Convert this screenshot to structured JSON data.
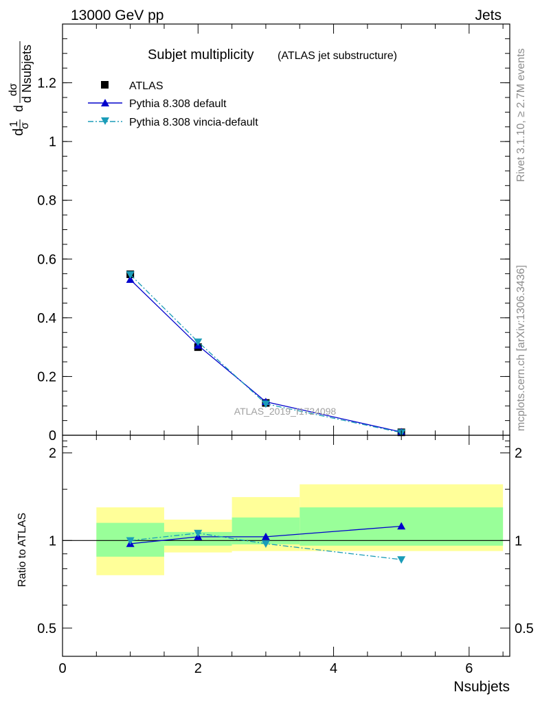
{
  "header": {
    "left": "13000 GeV pp",
    "right": "Jets"
  },
  "plot_title": {
    "main": "Subjet multiplicity",
    "sub": "(ATLAS jet substructure)"
  },
  "side_labels": {
    "rivet": "Rivet 3.1.10, ≥ 2.7M events",
    "mcplots": "mcplots.cern.ch [arXiv:1306.3436]"
  },
  "watermark": "ATLAS_2019_I1724098",
  "ylabel": {
    "frac_num": "1",
    "frac_den": "σ",
    "d_num": "dσ",
    "d_den": "d Nsubjets",
    "prefix": "d"
  },
  "colors": {
    "atlas": "#000000",
    "pythia_default": "#0000cc",
    "pythia_vincia": "#1a9cb8",
    "band_inner": "#99ff99",
    "band_outer": "#ffff99"
  },
  "chart_data": [
    {
      "type": "line",
      "panel": "main",
      "xlim": [
        0,
        6.6
      ],
      "ylim": [
        0,
        1.4
      ],
      "yticks": [
        0,
        0.2,
        0.4,
        0.6,
        0.8,
        1,
        1.2
      ],
      "ytick_labels": [
        "0",
        "0.2",
        "0.4",
        "0.6",
        "0.8",
        "1",
        "1.2"
      ],
      "legend_placement": "top-left",
      "series": [
        {
          "name": "ATLAS",
          "marker": "square",
          "x": [
            1,
            2,
            3,
            5
          ],
          "y": [
            0.548,
            0.3,
            0.11,
            0.01
          ]
        },
        {
          "name": "Pythia 8.308 default",
          "marker": "triangle-up",
          "line": "solid",
          "x": [
            1,
            2,
            3,
            5
          ],
          "y": [
            0.53,
            0.306,
            0.114,
            0.011
          ]
        },
        {
          "name": "Pythia 8.308 vincia-default",
          "marker": "triangle-down",
          "line": "dashdot",
          "x": [
            1,
            2,
            3,
            5
          ],
          "y": [
            0.547,
            0.318,
            0.107,
            0.009
          ]
        }
      ]
    },
    {
      "type": "line",
      "panel": "ratio",
      "ylabel": "Ratio to ATLAS",
      "xlabel": "Nsubjets",
      "xlim": [
        0,
        6.6
      ],
      "ylim": [
        0.4,
        2.3
      ],
      "log_y": true,
      "xticks": [
        0,
        2,
        4,
        6
      ],
      "xtick_labels": [
        "0",
        "2",
        "4",
        "6"
      ],
      "yticks": [
        0.5,
        1,
        2
      ],
      "ytick_labels": [
        "0.5",
        "1",
        "2"
      ],
      "bands": [
        {
          "x0": 0.5,
          "x1": 1.5,
          "inner": [
            0.88,
            1.15
          ],
          "outer": [
            0.76,
            1.3
          ]
        },
        {
          "x0": 1.5,
          "x1": 2.5,
          "inner": [
            0.96,
            1.07
          ],
          "outer": [
            0.91,
            1.18
          ]
        },
        {
          "x0": 2.5,
          "x1": 3.5,
          "inner": [
            0.97,
            1.2
          ],
          "outer": [
            0.92,
            1.41
          ]
        },
        {
          "x0": 3.5,
          "x1": 6.5,
          "inner": [
            0.96,
            1.3
          ],
          "outer": [
            0.92,
            1.56
          ]
        }
      ],
      "series": [
        {
          "name": "Pythia 8.308 default",
          "marker": "triangle-up",
          "line": "solid",
          "x": [
            1,
            2,
            3,
            5
          ],
          "y": [
            0.975,
            1.03,
            1.03,
            1.12
          ]
        },
        {
          "name": "Pythia 8.308 vincia-default",
          "marker": "triangle-down",
          "line": "dashdot",
          "x": [
            1,
            2,
            3,
            5
          ],
          "y": [
            1.0,
            1.06,
            0.975,
            0.86
          ]
        }
      ]
    }
  ]
}
